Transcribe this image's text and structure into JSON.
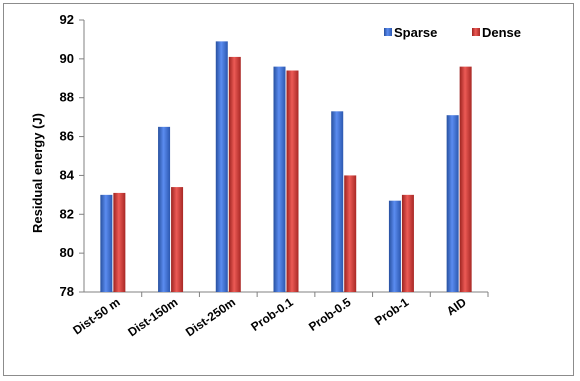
{
  "chart_data": {
    "type": "bar",
    "title": "",
    "xlabel": "",
    "ylabel": "Residual energy (J)",
    "ylim": [
      78,
      92
    ],
    "yticks": [
      "78",
      "80",
      "82",
      "84",
      "86",
      "88",
      "90",
      "92"
    ],
    "categories": [
      "Dist-50 m",
      "Dist-150m",
      "Dist-250m",
      "Prob-0.1",
      "Prob-0.5",
      "Prob-1",
      "AID"
    ],
    "series": [
      {
        "name": "Sparse",
        "color": "#3f6fd1",
        "values": [
          83.0,
          86.5,
          90.9,
          89.6,
          87.3,
          82.7,
          87.1
        ]
      },
      {
        "name": "Dense",
        "color": "#d23a36",
        "values": [
          83.1,
          83.4,
          90.1,
          89.4,
          84.0,
          83.0,
          89.6
        ]
      }
    ],
    "grid": false,
    "legend_position": "top-right"
  }
}
